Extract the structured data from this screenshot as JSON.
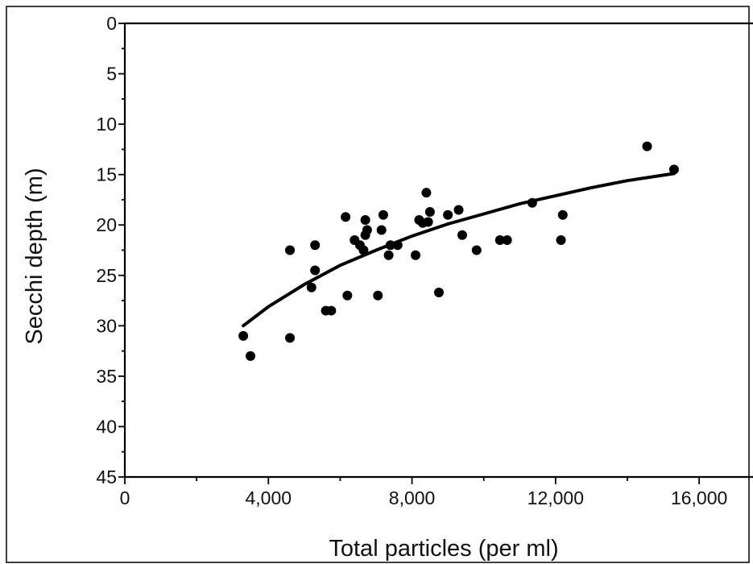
{
  "chart_data": {
    "type": "scatter",
    "xlabel": "Total particles (per ml)",
    "ylabel": "Secchi depth  (m)",
    "xlim": [
      0,
      17500
    ],
    "ylim": [
      0,
      45
    ],
    "y_inverted": true,
    "grid": false,
    "x_ticks": [
      0,
      4000,
      8000,
      12000,
      16000
    ],
    "x_tick_labels": [
      "0",
      "4,000",
      "8,000",
      "12,000",
      "16,000"
    ],
    "y_ticks": [
      0,
      5,
      10,
      15,
      20,
      25,
      30,
      35,
      40,
      45
    ],
    "y_tick_labels": [
      "0",
      "5",
      "10",
      "15",
      "20",
      "25",
      "30",
      "35",
      "40",
      "45"
    ],
    "points": [
      {
        "x": 3300,
        "y": 31.0
      },
      {
        "x": 3500,
        "y": 33.0
      },
      {
        "x": 4600,
        "y": 22.5
      },
      {
        "x": 4600,
        "y": 31.2
      },
      {
        "x": 5200,
        "y": 26.2
      },
      {
        "x": 5300,
        "y": 22.0
      },
      {
        "x": 5300,
        "y": 24.5
      },
      {
        "x": 5600,
        "y": 28.5
      },
      {
        "x": 5750,
        "y": 28.5
      },
      {
        "x": 6150,
        "y": 19.2
      },
      {
        "x": 6200,
        "y": 27.0
      },
      {
        "x": 6400,
        "y": 21.5
      },
      {
        "x": 6550,
        "y": 22.0
      },
      {
        "x": 6650,
        "y": 22.5
      },
      {
        "x": 6700,
        "y": 21.0
      },
      {
        "x": 6700,
        "y": 19.5
      },
      {
        "x": 6750,
        "y": 20.5
      },
      {
        "x": 7050,
        "y": 27.0
      },
      {
        "x": 7150,
        "y": 20.5
      },
      {
        "x": 7200,
        "y": 19.0
      },
      {
        "x": 7350,
        "y": 23.0
      },
      {
        "x": 7400,
        "y": 22.0
      },
      {
        "x": 7600,
        "y": 22.0
      },
      {
        "x": 8100,
        "y": 23.0
      },
      {
        "x": 8200,
        "y": 19.5
      },
      {
        "x": 8300,
        "y": 19.8
      },
      {
        "x": 8400,
        "y": 16.8
      },
      {
        "x": 8450,
        "y": 19.7
      },
      {
        "x": 8500,
        "y": 18.7
      },
      {
        "x": 8750,
        "y": 26.7
      },
      {
        "x": 9000,
        "y": 19.0
      },
      {
        "x": 9300,
        "y": 18.5
      },
      {
        "x": 9400,
        "y": 21.0
      },
      {
        "x": 9800,
        "y": 22.5
      },
      {
        "x": 10450,
        "y": 21.5
      },
      {
        "x": 10650,
        "y": 21.5
      },
      {
        "x": 11350,
        "y": 17.8
      },
      {
        "x": 12150,
        "y": 21.5
      },
      {
        "x": 12200,
        "y": 19.0
      },
      {
        "x": 14550,
        "y": 12.2
      },
      {
        "x": 15300,
        "y": 14.5
      }
    ],
    "fit_curve": [
      {
        "x": 3300,
        "y": 30.0
      },
      {
        "x": 4000,
        "y": 28.1
      },
      {
        "x": 5000,
        "y": 25.9
      },
      {
        "x": 6000,
        "y": 24.0
      },
      {
        "x": 7000,
        "y": 22.5
      },
      {
        "x": 8000,
        "y": 21.1
      },
      {
        "x": 9000,
        "y": 19.9
      },
      {
        "x": 10000,
        "y": 18.9
      },
      {
        "x": 11000,
        "y": 17.9
      },
      {
        "x": 12000,
        "y": 17.1
      },
      {
        "x": 13000,
        "y": 16.3
      },
      {
        "x": 14000,
        "y": 15.6
      },
      {
        "x": 15300,
        "y": 14.9
      }
    ]
  }
}
